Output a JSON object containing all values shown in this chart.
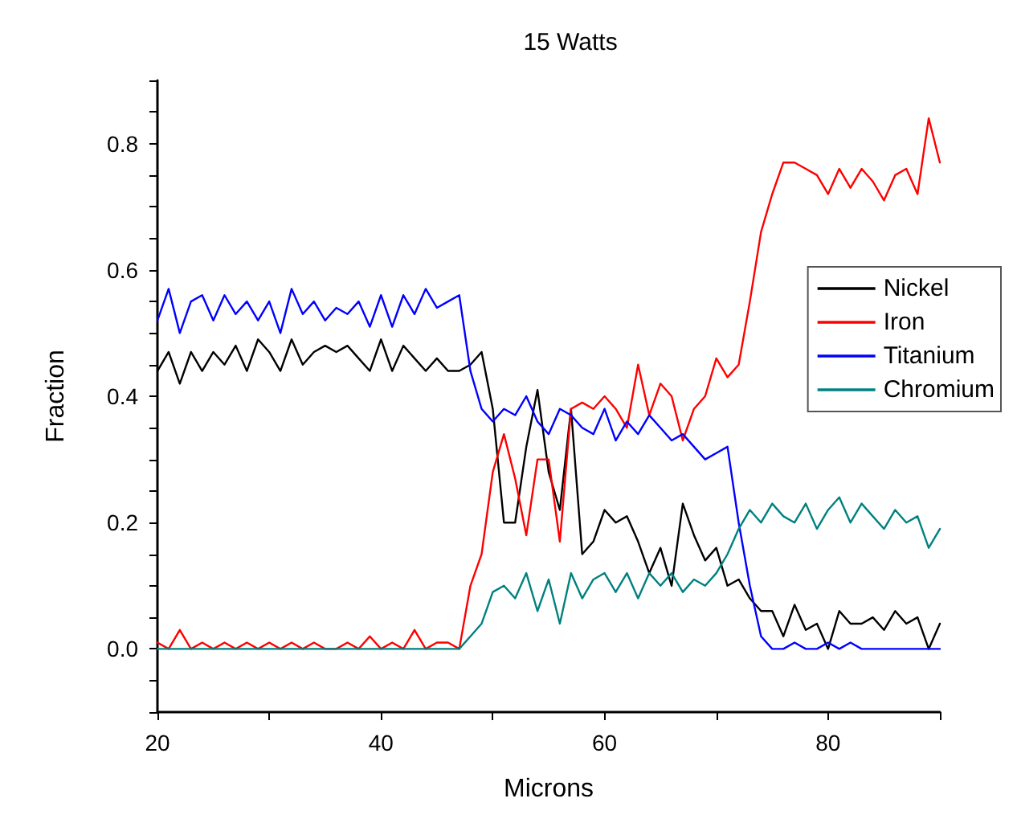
{
  "chart_data": {
    "type": "line",
    "title": "15 Watts",
    "xlabel": "Microns",
    "ylabel": "Fraction",
    "x": [
      20,
      21,
      22,
      23,
      24,
      25,
      26,
      27,
      28,
      29,
      30,
      31,
      32,
      33,
      34,
      35,
      36,
      37,
      38,
      39,
      40,
      41,
      42,
      43,
      44,
      45,
      46,
      47,
      48,
      49,
      50,
      51,
      52,
      53,
      54,
      55,
      56,
      57,
      58,
      59,
      60,
      61,
      62,
      63,
      64,
      65,
      66,
      67,
      68,
      69,
      70,
      71,
      72,
      73,
      74,
      75,
      76,
      77,
      78,
      79,
      80,
      81,
      82,
      83,
      84,
      85,
      86,
      87,
      88,
      89,
      90
    ],
    "series": [
      {
        "name": "Nickel",
        "color": "#000000",
        "values": [
          0.44,
          0.47,
          0.42,
          0.47,
          0.44,
          0.47,
          0.45,
          0.48,
          0.44,
          0.49,
          0.47,
          0.44,
          0.49,
          0.45,
          0.47,
          0.48,
          0.47,
          0.48,
          0.46,
          0.44,
          0.49,
          0.44,
          0.48,
          0.46,
          0.44,
          0.46,
          0.44,
          0.44,
          0.45,
          0.47,
          0.38,
          0.2,
          0.2,
          0.32,
          0.41,
          0.28,
          0.22,
          0.38,
          0.15,
          0.17,
          0.22,
          0.2,
          0.21,
          0.17,
          0.12,
          0.16,
          0.1,
          0.23,
          0.18,
          0.14,
          0.16,
          0.1,
          0.11,
          0.08,
          0.06,
          0.06,
          0.02,
          0.07,
          0.03,
          0.04,
          0.0,
          0.06,
          0.04,
          0.04,
          0.05,
          0.03,
          0.06,
          0.04,
          0.05,
          0.0,
          0.04
        ]
      },
      {
        "name": "Iron",
        "color": "#ff0000",
        "values": [
          0.01,
          0.0,
          0.03,
          0.0,
          0.01,
          0.0,
          0.01,
          0.0,
          0.01,
          0.0,
          0.01,
          0.0,
          0.01,
          0.0,
          0.01,
          0.0,
          0.0,
          0.01,
          0.0,
          0.02,
          0.0,
          0.01,
          0.0,
          0.03,
          0.0,
          0.01,
          0.01,
          0.0,
          0.1,
          0.15,
          0.28,
          0.34,
          0.27,
          0.18,
          0.3,
          0.3,
          0.17,
          0.38,
          0.39,
          0.38,
          0.4,
          0.38,
          0.35,
          0.45,
          0.37,
          0.42,
          0.4,
          0.33,
          0.38,
          0.4,
          0.46,
          0.43,
          0.45,
          0.55,
          0.66,
          0.72,
          0.77,
          0.77,
          0.76,
          0.75,
          0.72,
          0.76,
          0.73,
          0.76,
          0.74,
          0.71,
          0.75,
          0.76,
          0.72,
          0.84,
          0.77
        ]
      },
      {
        "name": "Titanium",
        "color": "#0000ff",
        "values": [
          0.52,
          0.57,
          0.5,
          0.55,
          0.56,
          0.52,
          0.56,
          0.53,
          0.55,
          0.52,
          0.55,
          0.5,
          0.57,
          0.53,
          0.55,
          0.52,
          0.54,
          0.53,
          0.55,
          0.51,
          0.56,
          0.51,
          0.56,
          0.53,
          0.57,
          0.54,
          0.55,
          0.56,
          0.44,
          0.38,
          0.36,
          0.38,
          0.37,
          0.4,
          0.36,
          0.34,
          0.38,
          0.37,
          0.35,
          0.34,
          0.38,
          0.33,
          0.36,
          0.34,
          0.37,
          0.35,
          0.33,
          0.34,
          0.32,
          0.3,
          0.31,
          0.32,
          0.2,
          0.1,
          0.02,
          0.0,
          0.0,
          0.01,
          0.0,
          0.0,
          0.01,
          0.0,
          0.01,
          0.0,
          0.0,
          0.0,
          0.0,
          0.0,
          0.0,
          0.0,
          0.0
        ]
      },
      {
        "name": "Chromium",
        "color": "#008080",
        "values": [
          0.0,
          0.0,
          0.0,
          0.0,
          0.0,
          0.0,
          0.0,
          0.0,
          0.0,
          0.0,
          0.0,
          0.0,
          0.0,
          0.0,
          0.0,
          0.0,
          0.0,
          0.0,
          0.0,
          0.0,
          0.0,
          0.0,
          0.0,
          0.0,
          0.0,
          0.0,
          0.0,
          0.0,
          0.02,
          0.04,
          0.09,
          0.1,
          0.08,
          0.12,
          0.06,
          0.11,
          0.04,
          0.12,
          0.08,
          0.11,
          0.12,
          0.09,
          0.12,
          0.08,
          0.12,
          0.1,
          0.12,
          0.09,
          0.11,
          0.1,
          0.12,
          0.15,
          0.19,
          0.22,
          0.2,
          0.23,
          0.21,
          0.2,
          0.23,
          0.19,
          0.22,
          0.24,
          0.2,
          0.23,
          0.21,
          0.19,
          0.22,
          0.2,
          0.21,
          0.16,
          0.19
        ]
      }
    ],
    "xlim": [
      20,
      90
    ],
    "xticks": [
      20,
      {
        "value": 30,
        "label": null
      },
      40,
      {
        "value": 50,
        "label": null
      },
      60,
      {
        "value": 70,
        "label": null
      },
      80,
      {
        "value": 90,
        "label": null
      }
    ],
    "ylim": [
      -0.1,
      0.9
    ],
    "yticks": [
      {
        "value": -0.1,
        "label": null
      },
      {
        "value": -0.05,
        "label": null
      },
      {
        "value": 0,
        "label": "0.0"
      },
      {
        "value": 0.05,
        "label": null
      },
      {
        "value": 0.1,
        "label": null
      },
      {
        "value": 0.15,
        "label": null
      },
      {
        "value": 0.2,
        "label": "0.2"
      },
      {
        "value": 0.25,
        "label": null
      },
      {
        "value": 0.3,
        "label": null
      },
      {
        "value": 0.35,
        "label": null
      },
      {
        "value": 0.4,
        "label": "0.4"
      },
      {
        "value": 0.45,
        "label": null
      },
      {
        "value": 0.5,
        "label": null
      },
      {
        "value": 0.55,
        "label": null
      },
      {
        "value": 0.6,
        "label": "0.6"
      },
      {
        "value": 0.65,
        "label": null
      },
      {
        "value": 0.7,
        "label": null
      },
      {
        "value": 0.75,
        "label": null
      },
      {
        "value": 0.8,
        "label": "0.8"
      },
      {
        "value": 0.85,
        "label": null
      },
      {
        "value": 0.9,
        "label": null
      }
    ],
    "grid": false,
    "legend": "right",
    "marker": "none",
    "line_style": "solid"
  }
}
